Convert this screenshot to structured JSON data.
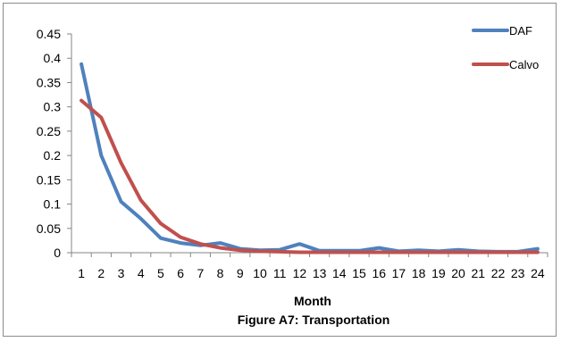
{
  "chart_data": {
    "type": "line",
    "title": "Figure A7: Transportation",
    "xlabel": "Month",
    "ylabel": "",
    "x": [
      1,
      2,
      3,
      4,
      5,
      6,
      7,
      8,
      9,
      10,
      11,
      12,
      13,
      14,
      15,
      16,
      17,
      18,
      19,
      20,
      21,
      22,
      23,
      24
    ],
    "ylim": [
      0,
      0.45
    ],
    "yticks": [
      "0",
      "0.05",
      "0.1",
      "0.15",
      "0.2",
      "0.25",
      "0.3",
      "0.35",
      "0.4",
      "0.45"
    ],
    "grid": false,
    "legend_position": "top-right",
    "series": [
      {
        "name": "DAF",
        "color": "#4f81bd",
        "values": [
          0.388,
          0.2,
          0.105,
          0.07,
          0.03,
          0.02,
          0.015,
          0.02,
          0.008,
          0.005,
          0.006,
          0.018,
          0.004,
          0.004,
          0.004,
          0.01,
          0.003,
          0.005,
          0.003,
          0.006,
          0.003,
          0.002,
          0.002,
          0.008
        ]
      },
      {
        "name": "Calvo",
        "color": "#c0504d",
        "values": [
          0.313,
          0.278,
          0.185,
          0.108,
          0.06,
          0.032,
          0.018,
          0.01,
          0.005,
          0.003,
          0.002,
          0.001,
          0.001,
          0.001,
          0.001,
          0.001,
          0.001,
          0.001,
          0.001,
          0.001,
          0.001,
          0.001,
          0.001,
          0.001
        ]
      }
    ]
  }
}
